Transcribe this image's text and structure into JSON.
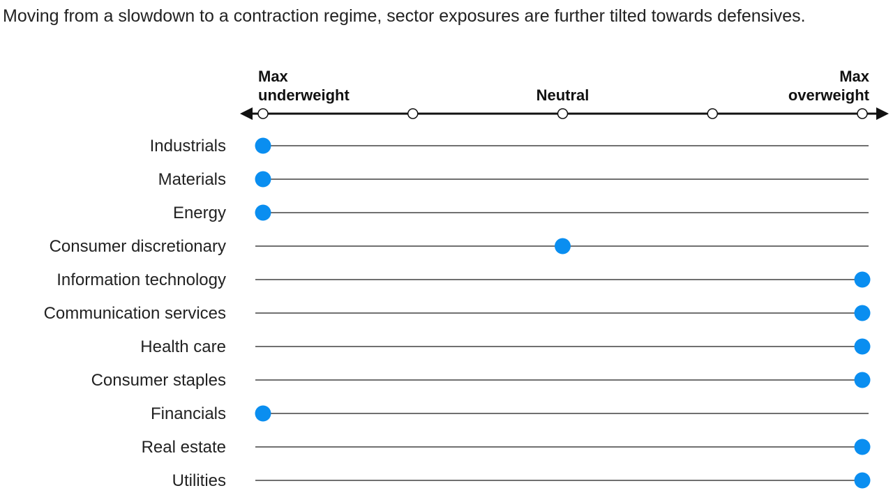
{
  "subtitle": "Moving from a slowdown to a contraction regime, sector exposures are further tilted towards defensives.",
  "chart_data": {
    "type": "scatter",
    "scale": {
      "min": -2,
      "max": 2,
      "ticks": [
        -2,
        -1,
        0,
        1,
        2
      ],
      "tick_labels": [
        {
          "value": -2,
          "lines": [
            "Max",
            "underweight"
          ],
          "anchor": "start"
        },
        {
          "value": 0,
          "lines": [
            "Neutral"
          ],
          "anchor": "middle"
        },
        {
          "value": 2,
          "lines": [
            "Max",
            "overweight"
          ],
          "anchor": "end"
        }
      ]
    },
    "categories": [
      "Industrials",
      "Materials",
      "Energy",
      "Consumer discretionary",
      "Information technology",
      "Communication services",
      "Health care",
      "Consumer staples",
      "Financials",
      "Real estate",
      "Utilities"
    ],
    "values": [
      -2,
      -2,
      -2,
      0,
      2,
      2,
      2,
      2,
      -2,
      2,
      2
    ],
    "colors": {
      "marker": "#0a8ef0",
      "line": "#1a1a1a",
      "axis": "#111111"
    }
  }
}
